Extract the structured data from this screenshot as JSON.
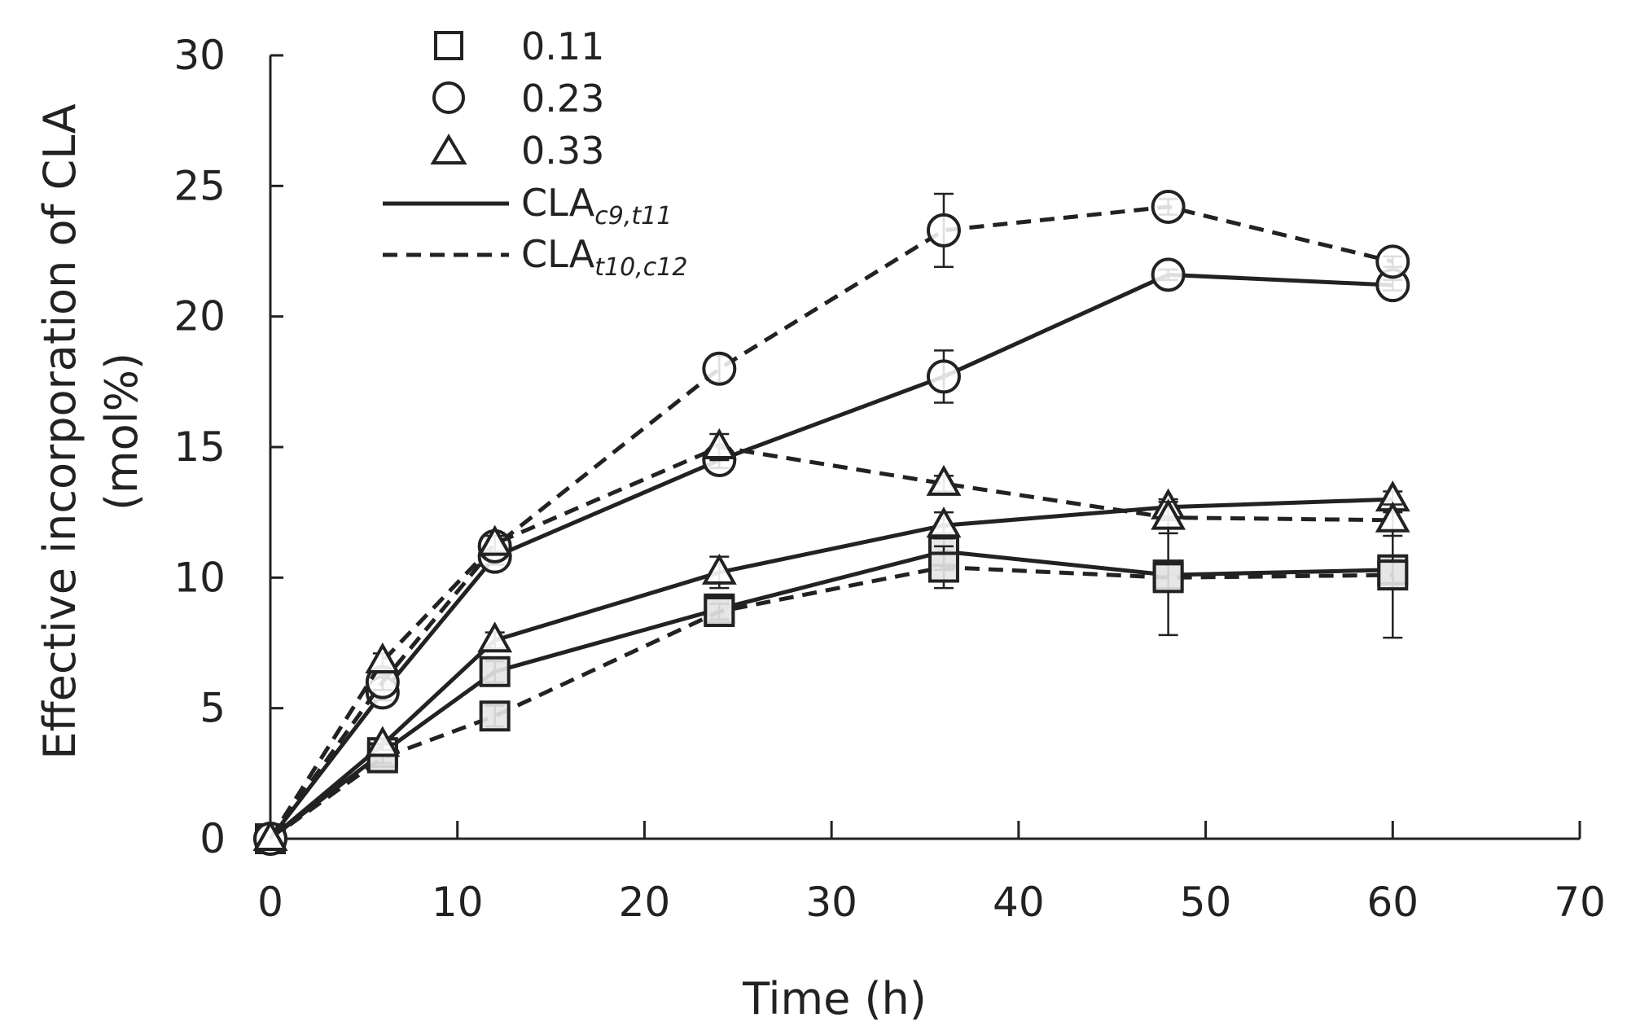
{
  "chart_data": {
    "type": "line",
    "title": "",
    "xlabel": "Time (h)",
    "ylabel_line1": "Effective incorporation of CLA",
    "ylabel_line2": "(mol%)",
    "xlim": [
      0,
      70
    ],
    "ylim": [
      0,
      30
    ],
    "x_ticks": [
      "0",
      "10",
      "20",
      "30",
      "40",
      "50",
      "60",
      "70"
    ],
    "y_ticks": [
      "0",
      "5",
      "10",
      "15",
      "20",
      "25",
      "30"
    ],
    "grid": false,
    "legend": {
      "placement": "top-left",
      "markers": [
        {
          "marker": "square",
          "label": "0.11"
        },
        {
          "marker": "circle",
          "label": "0.23"
        },
        {
          "marker": "triangle",
          "label": "0.33"
        }
      ],
      "lines": [
        {
          "style": "solid",
          "label": "CLA",
          "sub": "c9,t11"
        },
        {
          "style": "dashed",
          "label": "CLA",
          "sub": "t10,c12"
        }
      ]
    },
    "x": [
      0,
      6,
      12,
      24,
      36,
      48,
      60
    ],
    "series": [
      {
        "name": "0.11 CLAc9,t11",
        "marker": "square",
        "line": "solid",
        "values": [
          0,
          3.3,
          6.4,
          8.8,
          11.0,
          10.1,
          10.3
        ],
        "errors": [
          0,
          0.2,
          0.4,
          0.3,
          0.7,
          0.5,
          0.4
        ]
      },
      {
        "name": "0.11 CLAt10,c12",
        "marker": "square",
        "line": "dashed",
        "values": [
          0,
          3.1,
          4.7,
          8.7,
          10.4,
          10.0,
          10.1
        ],
        "errors": [
          0,
          0.2,
          0.4,
          0.3,
          0.8,
          2.2,
          2.4
        ]
      },
      {
        "name": "0.23 CLAc9,t11",
        "marker": "circle",
        "line": "solid",
        "values": [
          0,
          5.6,
          10.8,
          14.5,
          17.7,
          21.6,
          21.2
        ],
        "errors": [
          0,
          0.3,
          0.3,
          0.3,
          1.0,
          0.2,
          0.2
        ]
      },
      {
        "name": "0.23 CLAt10,c12",
        "marker": "circle",
        "line": "dashed",
        "values": [
          0,
          6.0,
          11.2,
          18.0,
          23.3,
          24.2,
          22.1
        ],
        "errors": [
          0,
          0.3,
          0.3,
          0.5,
          1.4,
          0.3,
          0.2
        ]
      },
      {
        "name": "0.33 CLAc9,t11",
        "marker": "triangle",
        "line": "solid",
        "values": [
          0,
          3.6,
          7.6,
          10.2,
          12.0,
          12.7,
          13.0
        ],
        "errors": [
          0,
          0.2,
          0.3,
          0.6,
          0.5,
          0.3,
          0.3
        ]
      },
      {
        "name": "0.33 CLAt10,c12",
        "marker": "triangle",
        "line": "dashed",
        "values": [
          0,
          6.8,
          11.3,
          15.0,
          13.6,
          12.3,
          12.2
        ],
        "errors": [
          0,
          0.3,
          0.3,
          0.5,
          0.3,
          0.6,
          0.6
        ]
      }
    ]
  }
}
